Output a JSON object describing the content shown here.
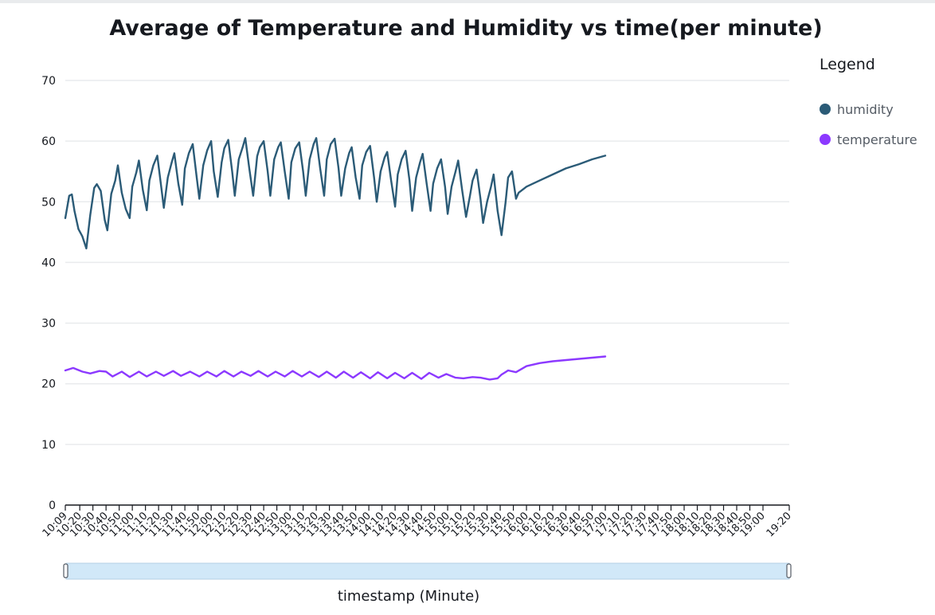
{
  "chart_data": {
    "type": "line",
    "title": "Average of Temperature and Humidity vs time(per minute)",
    "xlabel": "timestamp (Minute)",
    "ylabel": "",
    "ylim": [
      0,
      70
    ],
    "yticks": [
      0,
      10,
      20,
      30,
      40,
      50,
      60,
      70
    ],
    "x_range": [
      "10:09",
      "19:20"
    ],
    "xticks": [
      "10:09",
      "10:20",
      "10:30",
      "10:40",
      "10:50",
      "11:00",
      "11:10",
      "11:20",
      "11:30",
      "11:40",
      "11:50",
      "12:00",
      "12:10",
      "12:20",
      "12:30",
      "12:40",
      "12:50",
      "13:00",
      "13:10",
      "13:20",
      "13:30",
      "13:40",
      "13:50",
      "14:00",
      "14:10",
      "14:20",
      "14:30",
      "14:40",
      "14:50",
      "15:00",
      "15:10",
      "15:20",
      "15:30",
      "15:40",
      "15:50",
      "16:00",
      "16:10",
      "16:20",
      "16:30",
      "16:40",
      "16:50",
      "17:00",
      "17:10",
      "17:20",
      "17:30",
      "17:40",
      "17:50",
      "18:00",
      "18:10",
      "18:20",
      "18:30",
      "18:40",
      "18:50",
      "19:00",
      "19:20"
    ],
    "grid": true,
    "legend": {
      "title": "Legend",
      "position": "right"
    },
    "series": [
      {
        "name": "humidity",
        "color": "#2b5b77",
        "points": [
          [
            "10:09",
            47.3
          ],
          [
            "10:12",
            51.0
          ],
          [
            "10:14",
            51.2
          ],
          [
            "10:16",
            48.5
          ],
          [
            "10:19",
            45.5
          ],
          [
            "10:22",
            44.3
          ],
          [
            "10:25",
            42.3
          ],
          [
            "10:28",
            47.8
          ],
          [
            "10:31",
            52.3
          ],
          [
            "10:33",
            52.9
          ],
          [
            "10:36",
            51.8
          ],
          [
            "10:39",
            47.0
          ],
          [
            "10:41",
            45.3
          ],
          [
            "10:44",
            51.3
          ],
          [
            "10:47",
            53.5
          ],
          [
            "10:49",
            56.0
          ],
          [
            "10:52",
            51.5
          ],
          [
            "10:55",
            48.8
          ],
          [
            "10:58",
            47.3
          ],
          [
            "11:00",
            52.5
          ],
          [
            "11:03",
            54.8
          ],
          [
            "11:05",
            56.8
          ],
          [
            "11:08",
            52.0
          ],
          [
            "11:11",
            48.6
          ],
          [
            "11:13",
            53.5
          ],
          [
            "11:16",
            56.0
          ],
          [
            "11:19",
            57.6
          ],
          [
            "11:22",
            52.5
          ],
          [
            "11:24",
            49.0
          ],
          [
            "11:27",
            54.0
          ],
          [
            "11:30",
            56.5
          ],
          [
            "11:32",
            58.0
          ],
          [
            "11:35",
            53.0
          ],
          [
            "11:38",
            49.5
          ],
          [
            "11:40",
            55.5
          ],
          [
            "11:43",
            58.0
          ],
          [
            "11:46",
            59.5
          ],
          [
            "11:49",
            54.0
          ],
          [
            "11:51",
            50.5
          ],
          [
            "11:54",
            56.0
          ],
          [
            "11:57",
            58.5
          ],
          [
            "12:00",
            60.0
          ],
          [
            "12:02",
            55.0
          ],
          [
            "12:05",
            50.8
          ],
          [
            "12:08",
            56.5
          ],
          [
            "12:10",
            58.8
          ],
          [
            "12:13",
            60.2
          ],
          [
            "12:16",
            55.0
          ],
          [
            "12:18",
            51.0
          ],
          [
            "12:21",
            57.0
          ],
          [
            "12:24",
            59.0
          ],
          [
            "12:26",
            60.5
          ],
          [
            "12:29",
            55.5
          ],
          [
            "12:32",
            51.0
          ],
          [
            "12:35",
            57.5
          ],
          [
            "12:37",
            59.0
          ],
          [
            "12:40",
            60.0
          ],
          [
            "12:43",
            55.0
          ],
          [
            "12:45",
            51.0
          ],
          [
            "12:48",
            57.0
          ],
          [
            "12:51",
            59.0
          ],
          [
            "12:53",
            59.8
          ],
          [
            "12:56",
            55.0
          ],
          [
            "12:59",
            50.5
          ],
          [
            "13:01",
            56.5
          ],
          [
            "13:04",
            58.8
          ],
          [
            "13:07",
            59.8
          ],
          [
            "13:10",
            55.0
          ],
          [
            "13:12",
            51.0
          ],
          [
            "13:15",
            57.0
          ],
          [
            "13:18",
            59.5
          ],
          [
            "13:20",
            60.5
          ],
          [
            "13:23",
            55.5
          ],
          [
            "13:26",
            51.0
          ],
          [
            "13:28",
            57.0
          ],
          [
            "13:31",
            59.5
          ],
          [
            "13:34",
            60.4
          ],
          [
            "13:37",
            55.5
          ],
          [
            "13:39",
            51.0
          ],
          [
            "13:42",
            55.5
          ],
          [
            "13:45",
            58.0
          ],
          [
            "13:47",
            59.0
          ],
          [
            "13:50",
            54.0
          ],
          [
            "13:53",
            50.5
          ],
          [
            "13:55",
            56.0
          ],
          [
            "13:58",
            58.2
          ],
          [
            "14:01",
            59.2
          ],
          [
            "14:04",
            54.0
          ],
          [
            "14:06",
            50.0
          ],
          [
            "14:09",
            55.0
          ],
          [
            "14:12",
            57.3
          ],
          [
            "14:14",
            58.2
          ],
          [
            "14:17",
            53.5
          ],
          [
            "14:20",
            49.2
          ],
          [
            "14:22",
            54.5
          ],
          [
            "14:25",
            57.0
          ],
          [
            "14:28",
            58.4
          ],
          [
            "14:31",
            53.5
          ],
          [
            "14:33",
            48.5
          ],
          [
            "14:36",
            54.0
          ],
          [
            "14:39",
            56.5
          ],
          [
            "14:41",
            57.9
          ],
          [
            "14:44",
            53.0
          ],
          [
            "14:47",
            48.5
          ],
          [
            "14:49",
            53.0
          ],
          [
            "14:52",
            55.5
          ],
          [
            "14:55",
            57.0
          ],
          [
            "14:58",
            52.5
          ],
          [
            "15:00",
            48.0
          ],
          [
            "15:03",
            52.5
          ],
          [
            "15:06",
            55.0
          ],
          [
            "15:08",
            56.8
          ],
          [
            "15:11",
            52.0
          ],
          [
            "15:14",
            47.5
          ],
          [
            "15:17",
            51.0
          ],
          [
            "15:19",
            53.5
          ],
          [
            "15:22",
            55.3
          ],
          [
            "15:25",
            50.5
          ],
          [
            "15:27",
            46.5
          ],
          [
            "15:30",
            50.0
          ],
          [
            "15:33",
            52.5
          ],
          [
            "15:35",
            54.5
          ],
          [
            "15:38",
            48.5
          ],
          [
            "15:41",
            44.5
          ],
          [
            "15:44",
            49.8
          ],
          [
            "15:46",
            54.0
          ],
          [
            "15:49",
            55.0
          ],
          [
            "15:52",
            50.5
          ],
          [
            "15:54",
            51.5
          ],
          [
            "16:00",
            52.5
          ],
          [
            "16:10",
            53.5
          ],
          [
            "16:20",
            54.5
          ],
          [
            "16:30",
            55.5
          ],
          [
            "16:40",
            56.2
          ],
          [
            "16:50",
            57.0
          ],
          [
            "17:00",
            57.6
          ]
        ]
      },
      {
        "name": "temperature",
        "color": "#8c39ff",
        "points": [
          [
            "10:09",
            22.2
          ],
          [
            "10:15",
            22.6
          ],
          [
            "10:22",
            22.0
          ],
          [
            "10:28",
            21.7
          ],
          [
            "10:35",
            22.1
          ],
          [
            "10:40",
            22.0
          ],
          [
            "10:45",
            21.2
          ],
          [
            "10:52",
            22.0
          ],
          [
            "10:58",
            21.1
          ],
          [
            "11:05",
            22.0
          ],
          [
            "11:11",
            21.2
          ],
          [
            "11:18",
            22.0
          ],
          [
            "11:24",
            21.3
          ],
          [
            "11:31",
            22.1
          ],
          [
            "11:37",
            21.3
          ],
          [
            "11:44",
            22.0
          ],
          [
            "11:51",
            21.2
          ],
          [
            "11:57",
            22.0
          ],
          [
            "12:04",
            21.2
          ],
          [
            "12:10",
            22.1
          ],
          [
            "12:17",
            21.2
          ],
          [
            "12:23",
            22.0
          ],
          [
            "12:30",
            21.3
          ],
          [
            "12:36",
            22.1
          ],
          [
            "12:43",
            21.2
          ],
          [
            "12:49",
            22.0
          ],
          [
            "12:56",
            21.2
          ],
          [
            "13:02",
            22.1
          ],
          [
            "13:09",
            21.2
          ],
          [
            "13:15",
            22.0
          ],
          [
            "13:22",
            21.1
          ],
          [
            "13:28",
            22.0
          ],
          [
            "13:35",
            21.0
          ],
          [
            "13:41",
            22.0
          ],
          [
            "13:48",
            21.0
          ],
          [
            "13:54",
            21.9
          ],
          [
            "14:01",
            20.9
          ],
          [
            "14:07",
            21.9
          ],
          [
            "14:14",
            20.9
          ],
          [
            "14:20",
            21.8
          ],
          [
            "14:27",
            20.9
          ],
          [
            "14:33",
            21.8
          ],
          [
            "14:40",
            20.8
          ],
          [
            "14:46",
            21.8
          ],
          [
            "14:53",
            21.0
          ],
          [
            "14:59",
            21.6
          ],
          [
            "15:06",
            21.0
          ],
          [
            "15:12",
            20.9
          ],
          [
            "15:19",
            21.1
          ],
          [
            "15:25",
            21.0
          ],
          [
            "15:32",
            20.7
          ],
          [
            "15:38",
            20.9
          ],
          [
            "15:41",
            21.5
          ],
          [
            "15:46",
            22.2
          ],
          [
            "15:52",
            21.9
          ],
          [
            "16:00",
            22.9
          ],
          [
            "16:10",
            23.4
          ],
          [
            "16:20",
            23.7
          ],
          [
            "16:30",
            23.9
          ],
          [
            "16:40",
            24.1
          ],
          [
            "16:50",
            24.3
          ],
          [
            "17:00",
            24.5
          ]
        ]
      }
    ]
  }
}
